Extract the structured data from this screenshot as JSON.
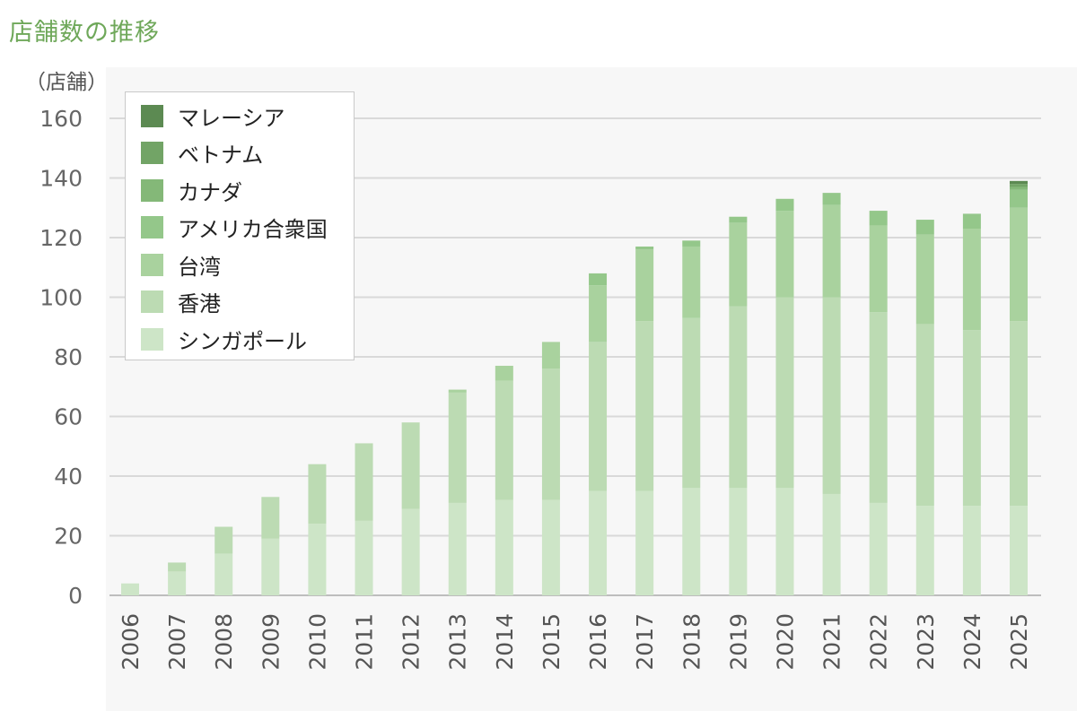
{
  "title": "店舗数の推移",
  "chart_data": {
    "type": "bar",
    "stacked": true,
    "ylabel": "（店舗）",
    "ylim": [
      0,
      160
    ],
    "yticks": [
      0,
      20,
      40,
      60,
      80,
      100,
      120,
      140,
      160
    ],
    "grid": true,
    "legend_position": "top-left",
    "categories": [
      "2006",
      "2007",
      "2008",
      "2009",
      "2010",
      "2011",
      "2012",
      "2013",
      "2014",
      "2015",
      "2016",
      "2017",
      "2018",
      "2019",
      "2020",
      "2021",
      "2022",
      "2023",
      "2024",
      "2025"
    ],
    "series": [
      {
        "name": "シンガポール",
        "color": "#cde5c7",
        "values": [
          4,
          8,
          14,
          19,
          24,
          25,
          29,
          31,
          32,
          32,
          35,
          35,
          36,
          36,
          36,
          34,
          31,
          30,
          30,
          30
        ]
      },
      {
        "name": "香港",
        "color": "#bcdbb3",
        "values": [
          0,
          3,
          9,
          14,
          20,
          26,
          29,
          37,
          40,
          44,
          50,
          57,
          57,
          61,
          64,
          66,
          64,
          61,
          59,
          62
        ]
      },
      {
        "name": "台湾",
        "color": "#a9d29e",
        "values": [
          0,
          0,
          0,
          0,
          0,
          0,
          0,
          1,
          5,
          9,
          19,
          24,
          24,
          28,
          29,
          31,
          29,
          30,
          34,
          38
        ]
      },
      {
        "name": "アメリカ合衆国",
        "color": "#94c78a",
        "values": [
          0,
          0,
          0,
          0,
          0,
          0,
          0,
          0,
          0,
          0,
          4,
          1,
          2,
          2,
          4,
          4,
          5,
          5,
          5,
          6
        ]
      },
      {
        "name": "カナダ",
        "color": "#84b878",
        "values": [
          0,
          0,
          0,
          0,
          0,
          0,
          0,
          0,
          0,
          0,
          0,
          0,
          0,
          0,
          0,
          0,
          0,
          0,
          0,
          1
        ]
      },
      {
        "name": "ベトナム",
        "color": "#72a466",
        "values": [
          0,
          0,
          0,
          0,
          0,
          0,
          0,
          0,
          0,
          0,
          0,
          0,
          0,
          0,
          0,
          0,
          0,
          0,
          0,
          1
        ]
      },
      {
        "name": "マレーシア",
        "color": "#5c8a52",
        "values": [
          0,
          0,
          0,
          0,
          0,
          0,
          0,
          0,
          0,
          0,
          0,
          0,
          0,
          0,
          0,
          0,
          0,
          0,
          0,
          1
        ]
      }
    ]
  }
}
